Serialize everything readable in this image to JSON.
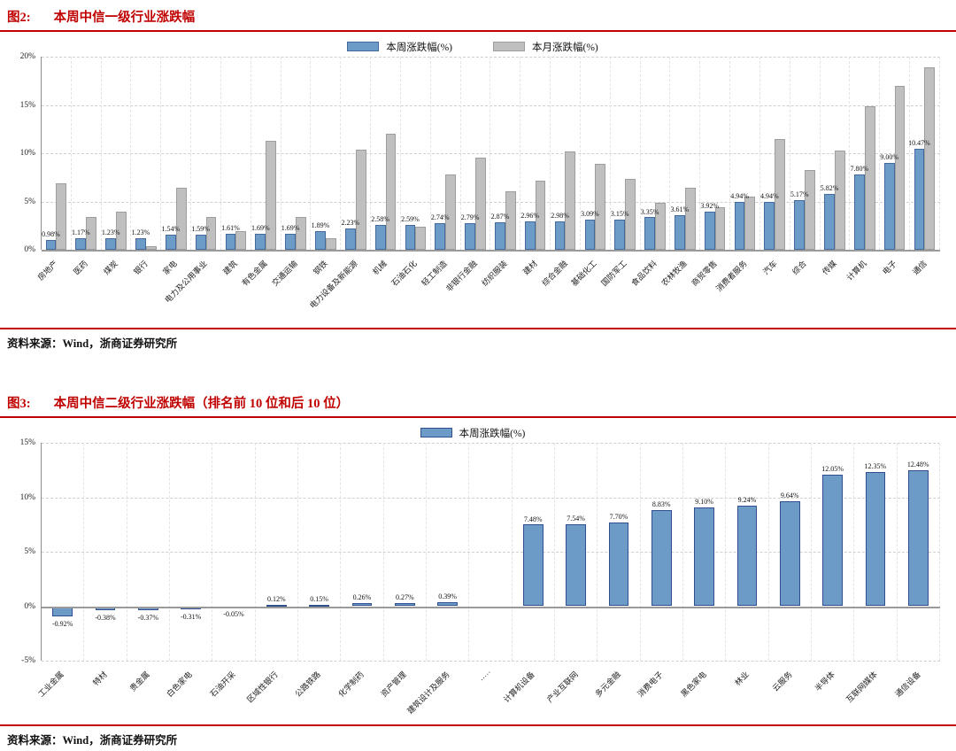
{
  "figure2": {
    "label": "图2:",
    "title": "本周中信一级行业涨跌幅",
    "source": "资料来源：Wind，浙商证券研究所"
  },
  "figure3": {
    "label": "图3:",
    "title": "本周中信二级行业涨跌幅（排名前 10 位和后 10 位）",
    "source": "资料来源：Wind，浙商证券研究所"
  },
  "colors": {
    "accent_red": "#c00000",
    "week_blue": "#6d9bc8",
    "week_blue_border_fig2": "#44699d",
    "week_blue_border_fig3": "#2f4f8f",
    "month_gray": "#bfbfbf",
    "month_gray_border": "#9e9e9e"
  },
  "chart_data": [
    {
      "type": "bar",
      "title": "本周中信一级行业涨跌幅",
      "legend_position": "top-center",
      "grid": true,
      "ylim": [
        0,
        20
      ],
      "ytick_step": 5,
      "ytick_labels": [
        "0%",
        "5%",
        "10%",
        "15%",
        "20%"
      ],
      "categories": [
        "房地产",
        "医药",
        "煤炭",
        "银行",
        "家电",
        "电力及公用事业",
        "建筑",
        "有色金属",
        "交通运输",
        "钢铁",
        "电力设备及新能源",
        "机械",
        "石油石化",
        "轻工制造",
        "非银行金融",
        "纺织服装",
        "建材",
        "综合金融",
        "基础化工",
        "国防军工",
        "食品饮料",
        "农林牧渔",
        "商贸零售",
        "消费者服务",
        "汽车",
        "综合",
        "传媒",
        "计算机",
        "电子",
        "通信"
      ],
      "series": [
        {
          "name": "本周涨跌幅(%)",
          "color": "#6d9bc8",
          "border": "#44699d",
          "show_labels": true,
          "values": [
            0.98,
            1.17,
            1.23,
            1.23,
            1.54,
            1.59,
            1.61,
            1.69,
            1.69,
            1.89,
            2.23,
            2.58,
            2.59,
            2.74,
            2.79,
            2.87,
            2.96,
            2.98,
            3.09,
            3.15,
            3.35,
            3.61,
            3.92,
            4.94,
            4.94,
            5.17,
            5.82,
            7.8,
            9.0,
            10.47
          ]
        },
        {
          "name": "本月涨跌幅(%)",
          "color": "#bfbfbf",
          "border": "#9e9e9e",
          "show_labels": false,
          "values": [
            6.9,
            3.4,
            3.9,
            0.4,
            6.4,
            3.4,
            1.9,
            11.3,
            3.4,
            1.2,
            10.4,
            12.0,
            2.4,
            7.8,
            9.5,
            6.1,
            7.2,
            10.2,
            8.9,
            7.3,
            4.9,
            6.4,
            4.4,
            5.5,
            11.5,
            8.3,
            10.3,
            14.9,
            17.0,
            18.9
          ]
        }
      ]
    },
    {
      "type": "bar",
      "title": "本周中信二级行业涨跌幅（排名前 10 位和后 10 位）",
      "legend_position": "top-center",
      "grid": true,
      "ylim": [
        -5,
        15
      ],
      "ytick_step": 5,
      "ytick_labels": [
        "-5%",
        "0%",
        "5%",
        "10%",
        "15%"
      ],
      "categories": [
        "工业金属",
        "特材",
        "贵金属",
        "白色家电",
        "石油开采",
        "区域性银行",
        "公路铁路",
        "化学制药",
        "资产管理",
        "建筑设计及服务",
        "·····",
        "计算机设备",
        "产业互联网",
        "多元金融",
        "消费电子",
        "黑色家电",
        "林业",
        "云服务",
        "半导体",
        "互联网媒体",
        "通信设备"
      ],
      "series": [
        {
          "name": "本周涨跌幅(%)",
          "color": "#6d9bc8",
          "border": "#2f4f8f",
          "show_labels": true,
          "values": [
            -0.92,
            -0.38,
            -0.37,
            -0.31,
            -0.05,
            0.12,
            0.15,
            0.26,
            0.27,
            0.39,
            null,
            7.48,
            7.54,
            7.7,
            8.83,
            9.1,
            9.24,
            9.64,
            12.05,
            12.35,
            12.48
          ]
        }
      ]
    }
  ]
}
